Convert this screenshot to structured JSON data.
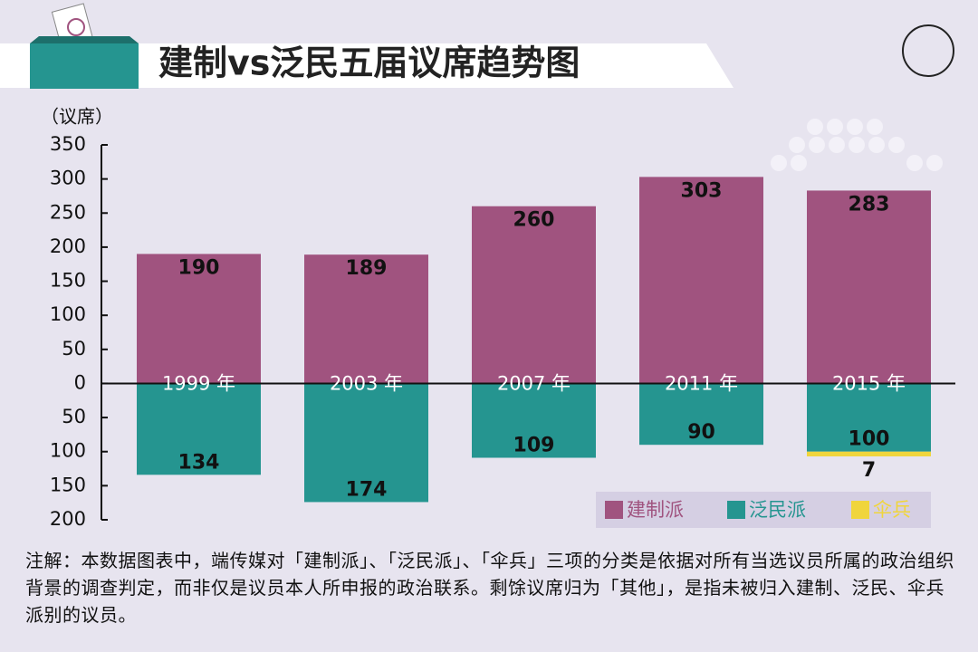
{
  "title": "建制vs泛民五届议席趋势图",
  "chart_data": {
    "type": "bar",
    "stacked": true,
    "y_label": "（议席）",
    "categories": [
      "1999 年",
      "2003 年",
      "2007 年",
      "2011 年",
      "2015 年"
    ],
    "series": [
      {
        "name": "建制派",
        "color": "#a0537f",
        "values": [
          190,
          189,
          260,
          303,
          283
        ]
      },
      {
        "name": "泛民派",
        "color": "#259590",
        "values": [
          -134,
          -174,
          -109,
          -90,
          -100
        ],
        "value_labels": [
          "134",
          "174",
          "109",
          "90",
          "100"
        ]
      },
      {
        "name": "伞兵",
        "color": "#f0d53c",
        "values": [
          null,
          null,
          null,
          null,
          -7
        ],
        "value_labels": [
          null,
          null,
          null,
          null,
          "7"
        ]
      }
    ],
    "ylim": [
      -200,
      350
    ],
    "yticks": [
      350,
      300,
      250,
      200,
      150,
      100,
      50,
      0,
      {
        "value": -50,
        "label": "50"
      },
      {
        "value": -100,
        "label": "100"
      },
      {
        "value": -150,
        "label": "150"
      },
      {
        "value": -200,
        "label": "200"
      }
    ]
  },
  "note": "注解：本数据图表中，端传媒对「建制派」、「泛民派」、「伞兵」三项的分类是依据对所有当选议员所属的政治组织背景的调查判定，而非仅是议员本人所申报的政治联系。剩馀议席归为「其他」，是指未被归入建制、泛民、伞兵派别的议员。"
}
